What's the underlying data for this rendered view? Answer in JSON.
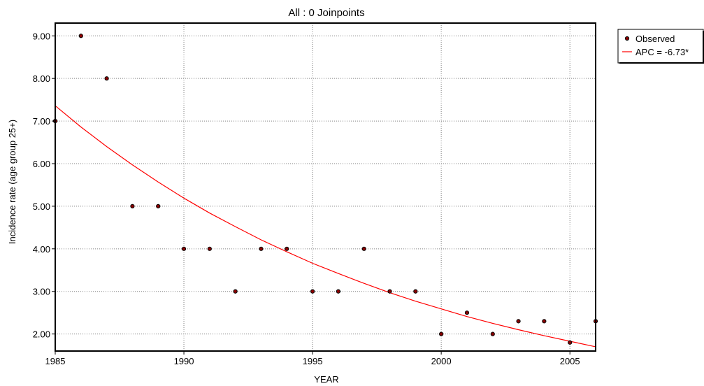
{
  "chart_data": {
    "type": "scatter",
    "title": "All : 0 Joinpoints",
    "xlabel": "YEAR",
    "ylabel": "Incidence rate (age group 25+)",
    "xlim": [
      1985,
      2006
    ],
    "ylim": [
      1.6,
      9.3
    ],
    "xticks": [
      1985,
      1990,
      1995,
      2000,
      2005
    ],
    "xtick_labels": [
      "1985",
      "1990",
      "1995",
      "2000",
      "2005"
    ],
    "yticks": [
      2,
      3,
      4,
      5,
      6,
      7,
      8,
      9
    ],
    "ytick_labels": [
      "2.00",
      "3.00",
      "4.00",
      "5.00",
      "6.00",
      "7.00",
      "8.00",
      "9.00"
    ],
    "grid": true,
    "legend_position": "right",
    "series": [
      {
        "name": "Observed",
        "kind": "points",
        "color": "#8b0000",
        "x": [
          1985,
          1986,
          1987,
          1988,
          1989,
          1990,
          1991,
          1992,
          1993,
          1994,
          1995,
          1996,
          1997,
          1998,
          1999,
          2000,
          2001,
          2002,
          2003,
          2004,
          2005,
          2006
        ],
        "y": [
          7.0,
          9.0,
          8.0,
          5.0,
          5.0,
          4.0,
          4.0,
          3.0,
          4.0,
          4.0,
          3.0,
          3.0,
          4.0,
          3.0,
          3.0,
          2.0,
          2.5,
          2.0,
          2.3,
          2.3,
          1.8,
          2.3
        ]
      },
      {
        "name": "APC = -6.73*",
        "kind": "line",
        "color": "#ff0000",
        "x": [
          1985,
          1986,
          1987,
          1988,
          1989,
          1990,
          1991,
          1992,
          1993,
          1994,
          1995,
          1996,
          1997,
          1998,
          1999,
          2000,
          2001,
          2002,
          2003,
          2004,
          2005,
          2006
        ],
        "y": [
          7.36,
          6.86,
          6.4,
          5.97,
          5.57,
          5.19,
          4.84,
          4.52,
          4.21,
          3.93,
          3.66,
          3.42,
          3.19,
          2.97,
          2.77,
          2.59,
          2.41,
          2.25,
          2.1,
          1.96,
          1.83,
          1.7
        ]
      }
    ]
  }
}
